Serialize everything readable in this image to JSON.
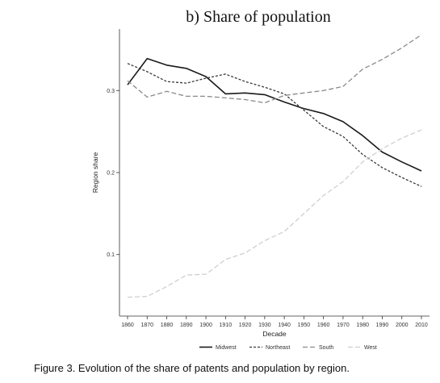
{
  "chart_data": {
    "type": "line",
    "title": "b)   Share of population",
    "xlabel": "Decade",
    "ylabel": "Region share",
    "categories": [
      "1860",
      "1870",
      "1880",
      "1890",
      "1900",
      "1910",
      "1920",
      "1930",
      "1940",
      "1950",
      "1960",
      "1970",
      "1980",
      "1990",
      "2000",
      "2010"
    ],
    "y_ticks": [
      0.1,
      0.2,
      0.3
    ],
    "ylim": [
      0.025,
      0.375
    ],
    "grid": false,
    "legend_position": "bottom",
    "series": [
      {
        "name": "Midwest",
        "color": "#1a1a1a",
        "dash": "solid",
        "values": [
          0.307,
          0.339,
          0.331,
          0.327,
          0.317,
          0.296,
          0.297,
          0.295,
          0.286,
          0.278,
          0.272,
          0.262,
          0.245,
          0.225,
          0.213,
          0.202
        ]
      },
      {
        "name": "Northeast",
        "color": "#3a3a3a",
        "dash": "short",
        "values": [
          0.333,
          0.323,
          0.311,
          0.309,
          0.315,
          0.32,
          0.311,
          0.304,
          0.296,
          0.276,
          0.256,
          0.244,
          0.222,
          0.206,
          0.194,
          0.183
        ]
      },
      {
        "name": "South",
        "color": "#8a8a8a",
        "dash": "long",
        "values": [
          0.312,
          0.292,
          0.299,
          0.293,
          0.293,
          0.291,
          0.289,
          0.285,
          0.294,
          0.297,
          0.3,
          0.305,
          0.326,
          0.338,
          0.352,
          0.368
        ]
      },
      {
        "name": "West",
        "color": "#cfcfcf",
        "dash": "long",
        "values": [
          0.048,
          0.049,
          0.061,
          0.075,
          0.076,
          0.094,
          0.102,
          0.117,
          0.128,
          0.15,
          0.172,
          0.189,
          0.213,
          0.229,
          0.242,
          0.252
        ]
      }
    ]
  },
  "caption": "Figure 3.  Evolution of the share of patents and population by region."
}
